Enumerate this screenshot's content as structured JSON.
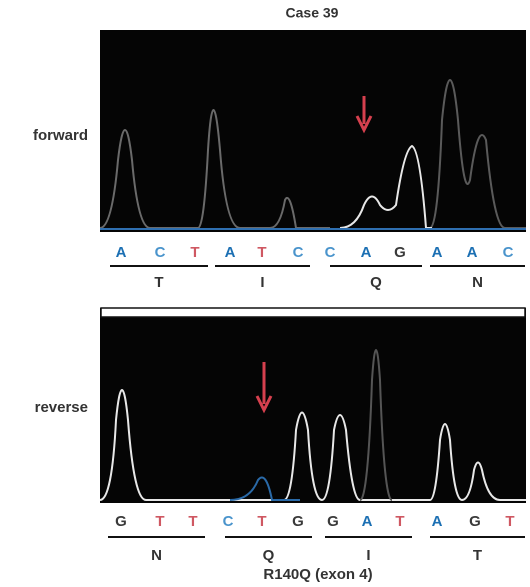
{
  "title": "Case 39",
  "base_colors": {
    "A": "#1b6fb3",
    "C": "#4a94cc",
    "T": "#cf5862",
    "G": "#3a3a3a"
  },
  "panels": [
    {
      "label": "forward",
      "bases": [
        "A",
        "C",
        "T",
        "A",
        "T",
        "C",
        "C",
        "A",
        "G",
        "A",
        "A",
        "C"
      ],
      "amino_acids": [
        "T",
        "I",
        "Q",
        "N"
      ]
    },
    {
      "label": "reverse",
      "bases": [
        "G",
        "T",
        "T",
        "C",
        "T",
        "G",
        "G",
        "A",
        "T",
        "A",
        "G",
        "T"
      ],
      "amino_acids": [
        "N",
        "Q",
        "I",
        "T"
      ]
    }
  ],
  "caption": "R140Q (exon 4)"
}
